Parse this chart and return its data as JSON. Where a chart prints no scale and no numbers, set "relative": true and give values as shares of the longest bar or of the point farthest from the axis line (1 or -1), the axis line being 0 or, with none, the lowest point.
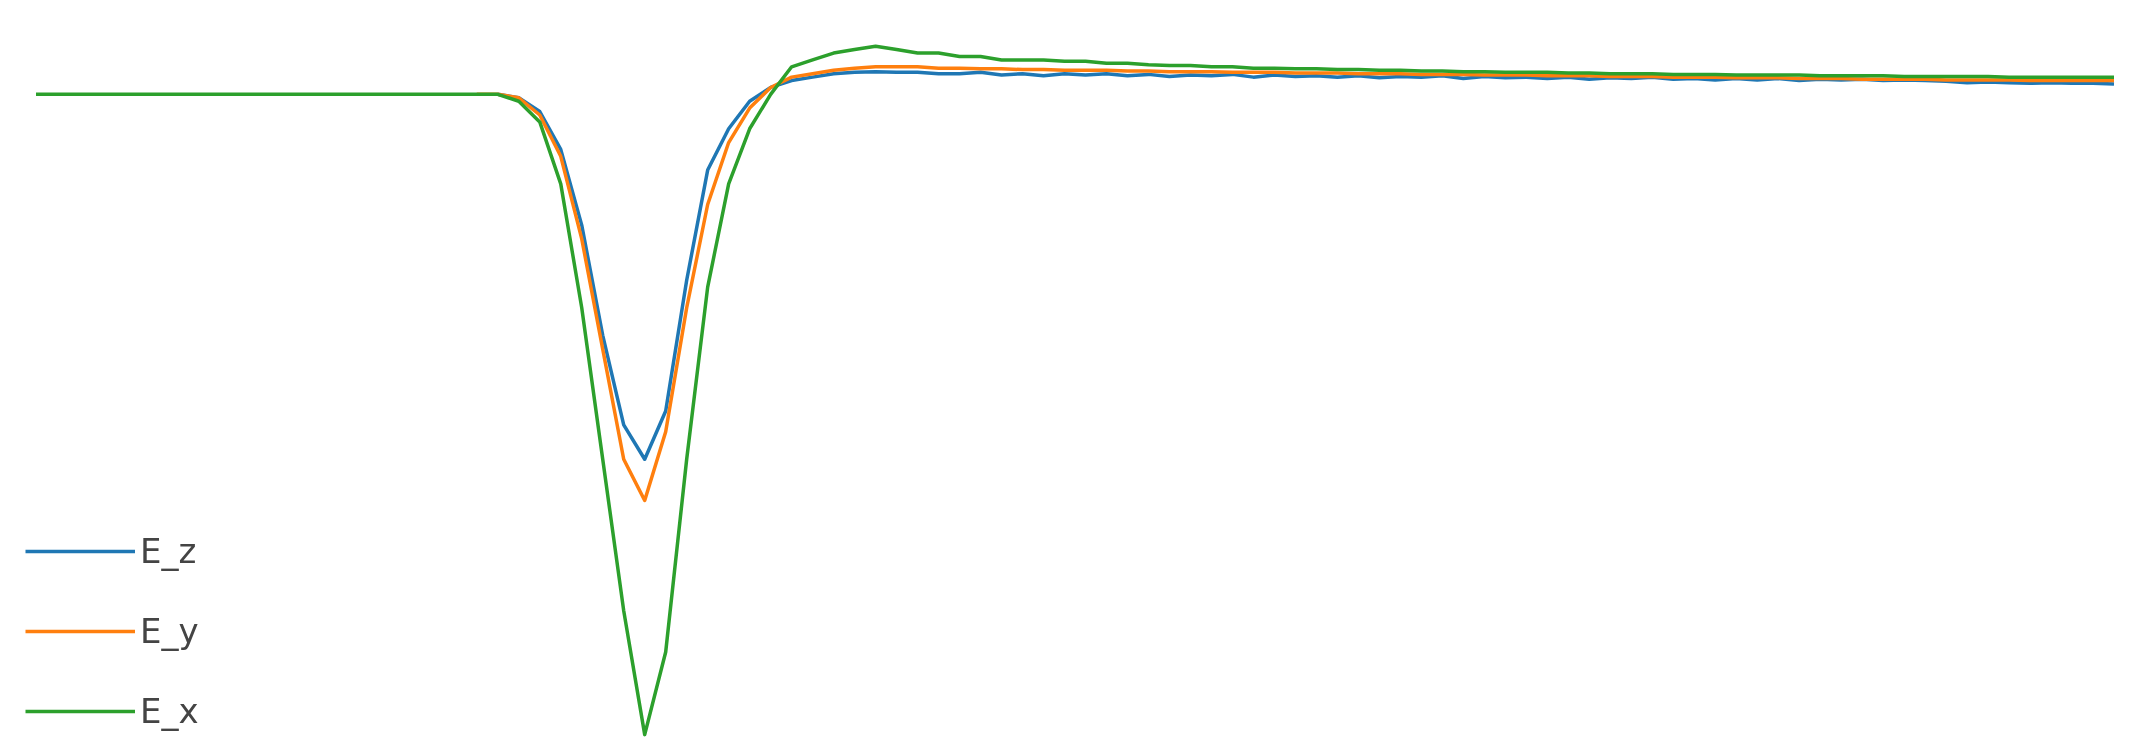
{
  "chart_data": {
    "type": "line",
    "relative": true,
    "legend": "bottom left",
    "grid": false,
    "categories": [
      null,
      null,
      null,
      null,
      null,
      null,
      null,
      null,
      null,
      null,
      null,
      null,
      null,
      null,
      null,
      null,
      null,
      null,
      null,
      null,
      null,
      null,
      null,
      null,
      null,
      null,
      null,
      null,
      null,
      null,
      null,
      null,
      null,
      null,
      null,
      null,
      null,
      null,
      null,
      null,
      null,
      null,
      null,
      null,
      null,
      null,
      null,
      null,
      null,
      null,
      null,
      null,
      null,
      null,
      null,
      null,
      null,
      null,
      null,
      null,
      null,
      null,
      null,
      null,
      null,
      null,
      null,
      null,
      null,
      null,
      null,
      null,
      null,
      null,
      null,
      null,
      null,
      null,
      null,
      null,
      null,
      null,
      null,
      null,
      null,
      null,
      null,
      null,
      null,
      null,
      null,
      null,
      null,
      null,
      null,
      null,
      null,
      null,
      null,
      null
    ],
    "series": [
      {
        "name": "E_z",
        "color": "#1f77b4",
        "values": [
          null,
          null,
          null,
          null,
          null,
          null,
          null,
          null,
          null,
          null,
          null,
          null,
          null,
          null,
          null,
          null,
          null,
          null,
          null,
          null,
          null,
          null,
          0.93,
          0.925,
          0.905,
          0.85,
          0.74,
          0.58,
          0.45,
          0.4,
          0.47,
          0.66,
          0.82,
          0.88,
          0.92,
          0.94,
          0.95,
          0.955,
          0.96,
          0.962,
          0.963,
          0.962,
          0.962,
          0.96,
          0.96,
          0.962,
          0.958,
          0.96,
          0.957,
          0.96,
          0.958,
          0.96,
          0.957,
          0.959,
          0.956,
          0.958,
          0.957,
          0.959,
          0.955,
          0.958,
          0.956,
          0.957,
          0.955,
          0.957,
          0.954,
          0.956,
          0.955,
          0.957,
          0.953,
          0.956,
          0.954,
          0.955,
          0.953,
          0.955,
          0.952,
          0.954,
          0.953,
          0.955,
          0.952,
          0.953,
          0.951,
          0.953,
          0.951,
          0.953,
          0.95,
          0.952,
          0.951,
          0.952,
          0.95,
          0.951,
          0.95,
          0.949,
          0.947,
          0.948,
          0.947,
          0.946,
          0.947,
          0.946,
          0.946,
          0.945
        ]
      },
      {
        "name": "E_y",
        "color": "#ff7f0e",
        "values": [
          null,
          null,
          null,
          null,
          null,
          null,
          null,
          null,
          null,
          null,
          null,
          null,
          null,
          null,
          null,
          null,
          null,
          null,
          null,
          null,
          null,
          0.93,
          0.93,
          0.925,
          0.9,
          0.84,
          0.72,
          0.56,
          0.4,
          0.34,
          0.44,
          0.62,
          0.77,
          0.86,
          0.91,
          0.94,
          0.955,
          0.96,
          0.965,
          0.968,
          0.97,
          0.97,
          0.97,
          0.968,
          0.968,
          0.967,
          0.967,
          0.966,
          0.966,
          0.965,
          0.965,
          0.965,
          0.964,
          0.964,
          0.963,
          0.963,
          0.963,
          0.962,
          0.962,
          0.962,
          0.961,
          0.961,
          0.961,
          0.96,
          0.96,
          0.96,
          0.959,
          0.959,
          0.959,
          0.958,
          0.958,
          0.958,
          0.957,
          0.957,
          0.957,
          0.956,
          0.956,
          0.956,
          0.955,
          0.955,
          0.955,
          0.954,
          0.954,
          0.954,
          0.953,
          0.953,
          0.953,
          0.952,
          0.952,
          0.952,
          0.952,
          0.951,
          0.951,
          0.951,
          0.951,
          0.95,
          0.95,
          0.95,
          0.95,
          0.95
        ]
      },
      {
        "name": "E_x",
        "color": "#2ca02c",
        "values": [
          0.93,
          0.93,
          0.93,
          0.93,
          0.93,
          0.93,
          0.93,
          0.93,
          0.93,
          0.93,
          0.93,
          0.93,
          0.93,
          0.93,
          0.93,
          0.93,
          0.93,
          0.93,
          0.93,
          0.93,
          0.93,
          0.93,
          0.93,
          0.92,
          0.89,
          0.8,
          0.62,
          0.4,
          0.18,
          0.0,
          0.12,
          0.4,
          0.65,
          0.8,
          0.88,
          0.93,
          0.97,
          0.98,
          0.99,
          0.995,
          1.0,
          0.995,
          0.99,
          0.99,
          0.985,
          0.985,
          0.98,
          0.98,
          0.98,
          0.978,
          0.978,
          0.975,
          0.975,
          0.973,
          0.972,
          0.972,
          0.97,
          0.97,
          0.968,
          0.968,
          0.967,
          0.967,
          0.966,
          0.966,
          0.965,
          0.965,
          0.964,
          0.964,
          0.963,
          0.963,
          0.962,
          0.962,
          0.962,
          0.961,
          0.961,
          0.96,
          0.96,
          0.96,
          0.959,
          0.959,
          0.959,
          0.958,
          0.958,
          0.958,
          0.958,
          0.957,
          0.957,
          0.957,
          0.957,
          0.956,
          0.956,
          0.956,
          0.956,
          0.956,
          0.955,
          0.955,
          0.955,
          0.955,
          0.955,
          0.955
        ]
      }
    ]
  }
}
